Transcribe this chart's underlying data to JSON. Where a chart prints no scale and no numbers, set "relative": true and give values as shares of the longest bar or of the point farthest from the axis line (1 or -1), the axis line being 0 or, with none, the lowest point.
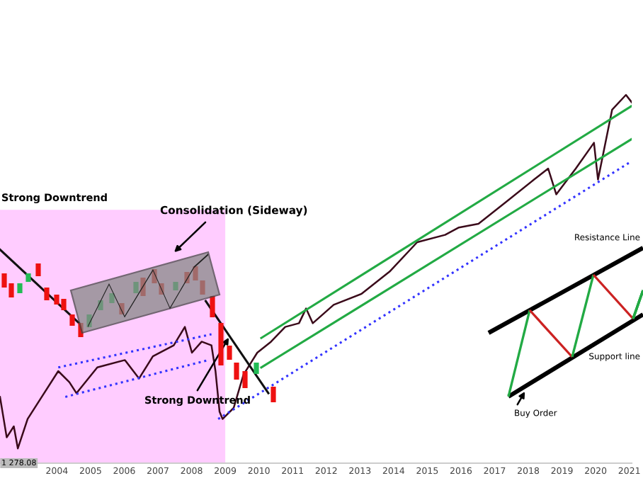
{
  "chart_data": {
    "type": "line",
    "relative": true,
    "xlim": [
      2002.31,
      2021.07
    ],
    "xticks": [
      2004,
      2005,
      2006,
      2007,
      2008,
      2009,
      2010,
      2011,
      2012,
      2013,
      2014,
      2015,
      2016,
      2017,
      2018,
      2019,
      2020,
      2021
    ],
    "grid": false,
    "legend": false,
    "marker": "none",
    "bands": [
      {
        "axis": "x",
        "from": 2002.31,
        "to": 2009.0,
        "color": "#ffccff"
      }
    ],
    "series": [
      {
        "color": "#3a0a1a",
        "x": [
          2002.31,
          2002.51,
          2002.72,
          2002.84,
          2003.13,
          2003.55,
          2004.04,
          2004.37,
          2004.58,
          2005.2,
          2006.02,
          2006.44,
          2006.85,
          2007.47,
          2007.8,
          2008.01,
          2008.3,
          2008.59,
          2008.71,
          2008.83,
          2008.92,
          2009.25,
          2009.54,
          2009.95,
          2010.36,
          2010.78,
          2011.19,
          2011.4,
          2011.6,
          2012.22,
          2013.05,
          2013.88,
          2014.7,
          2015.53,
          2015.94,
          2016.52,
          2017.35,
          2018.17,
          2018.59,
          2018.83,
          2019.41,
          2019.95,
          2020.07,
          2020.49,
          2020.9,
          2021.07
        ],
        "values": [
          0.18,
          0.07,
          0.1,
          0.04,
          0.12,
          0.18,
          0.25,
          0.22,
          0.19,
          0.26,
          0.28,
          0.23,
          0.29,
          0.32,
          0.37,
          0.3,
          0.33,
          0.32,
          0.25,
          0.14,
          0.12,
          0.15,
          0.24,
          0.3,
          0.33,
          0.37,
          0.38,
          0.42,
          0.38,
          0.43,
          0.46,
          0.52,
          0.6,
          0.62,
          0.64,
          0.65,
          0.71,
          0.77,
          0.8,
          0.73,
          0.8,
          0.87,
          0.77,
          0.96,
          1.0,
          0.98
        ]
      },
      {
        "color": "#22aa44",
        "x": [
          2010.07,
          2021.07
        ],
        "values": [
          0.34,
          0.97
        ]
      },
      {
        "color": "#22aa44",
        "x": [
          2010.07,
          2021.07
        ],
        "values": [
          0.26,
          0.88
        ]
      },
      {
        "color": "#3333ff",
        "line_style": "dotted",
        "x": [
          2008.79,
          2021.07
        ],
        "values": [
          0.12,
          0.82
        ]
      },
      {
        "color": "#3333ff",
        "line_style": "dotted",
        "x": [
          2004.04,
          2008.59
        ],
        "values": [
          0.26,
          0.35
        ]
      },
      {
        "color": "#3333ff",
        "line_style": "dotted",
        "x": [
          2004.25,
          2008.5
        ],
        "values": [
          0.18,
          0.28
        ]
      },
      {
        "color": "#111111",
        "x": [
          2002.31,
          2004.66
        ],
        "values": [
          0.58,
          0.38
        ]
      },
      {
        "color": "#111111",
        "x": [
          2008.42,
          2010.28
        ],
        "values": [
          0.44,
          0.19
        ]
      }
    ],
    "annotations": [
      "Strong Downtrend",
      "Consolidation (Sideway)",
      "Strong Downtrend",
      "Resistance Line",
      "Support line",
      "Buy Order",
      "1 278.08"
    ]
  }
}
